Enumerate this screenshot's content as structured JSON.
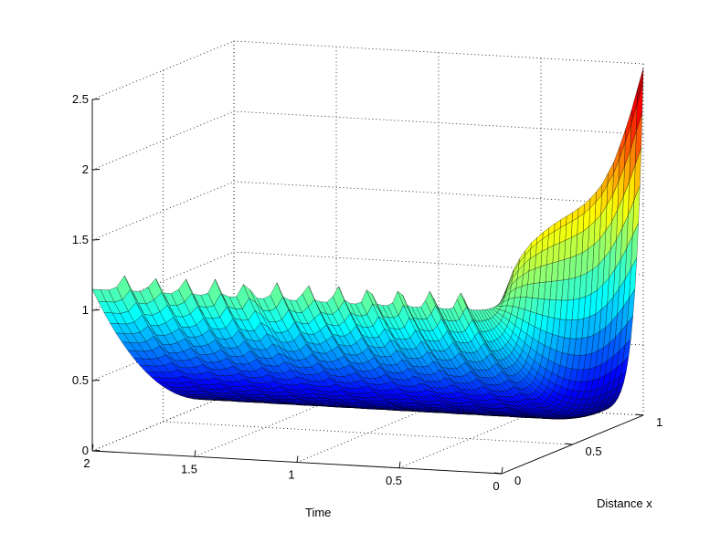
{
  "chart_data": {
    "type": "surface",
    "title": "",
    "xlabel": "Distance x",
    "ylabel": "Time",
    "zlabel": "",
    "x_ticks": [
      "0",
      "0.5",
      "1"
    ],
    "y_ticks": [
      "0",
      "0.5",
      "1",
      "1.5",
      "2"
    ],
    "z_ticks": [
      "0",
      "0.5",
      "1",
      "1.5",
      "2",
      "2.5"
    ],
    "xlim": [
      0,
      1
    ],
    "ylim": [
      0,
      2
    ],
    "zlim": [
      0,
      2.5
    ],
    "grid": true,
    "colormap": "jet",
    "surface": {
      "x": [
        0,
        0.1,
        0.2,
        0.3,
        0.4,
        0.5,
        0.6,
        0.7,
        0.8,
        0.9,
        1.0
      ],
      "t_samples": [
        0,
        0.01,
        0.03,
        0.05,
        0.08,
        0.12,
        0.2,
        0.4,
        0.6,
        0.8,
        1.0,
        1.2,
        1.4,
        1.6,
        1.8,
        2.0
      ],
      "u_at_t0": [
        1.23,
        1.45,
        1.55,
        1.6,
        1.63,
        1.65,
        1.68,
        1.75,
        1.9,
        2.15,
        2.47
      ],
      "u_late_front_x": 0.0,
      "u_late_front_peak": 1.15,
      "u_late_back": 0.0,
      "oscillation_peaks_t": [
        1.85,
        1.7,
        1.55,
        1.4,
        1.25,
        1.1,
        0.95,
        0.8,
        0.65,
        0.5,
        0.35,
        0.2
      ],
      "oscillation_amplitude": 0.12
    }
  }
}
